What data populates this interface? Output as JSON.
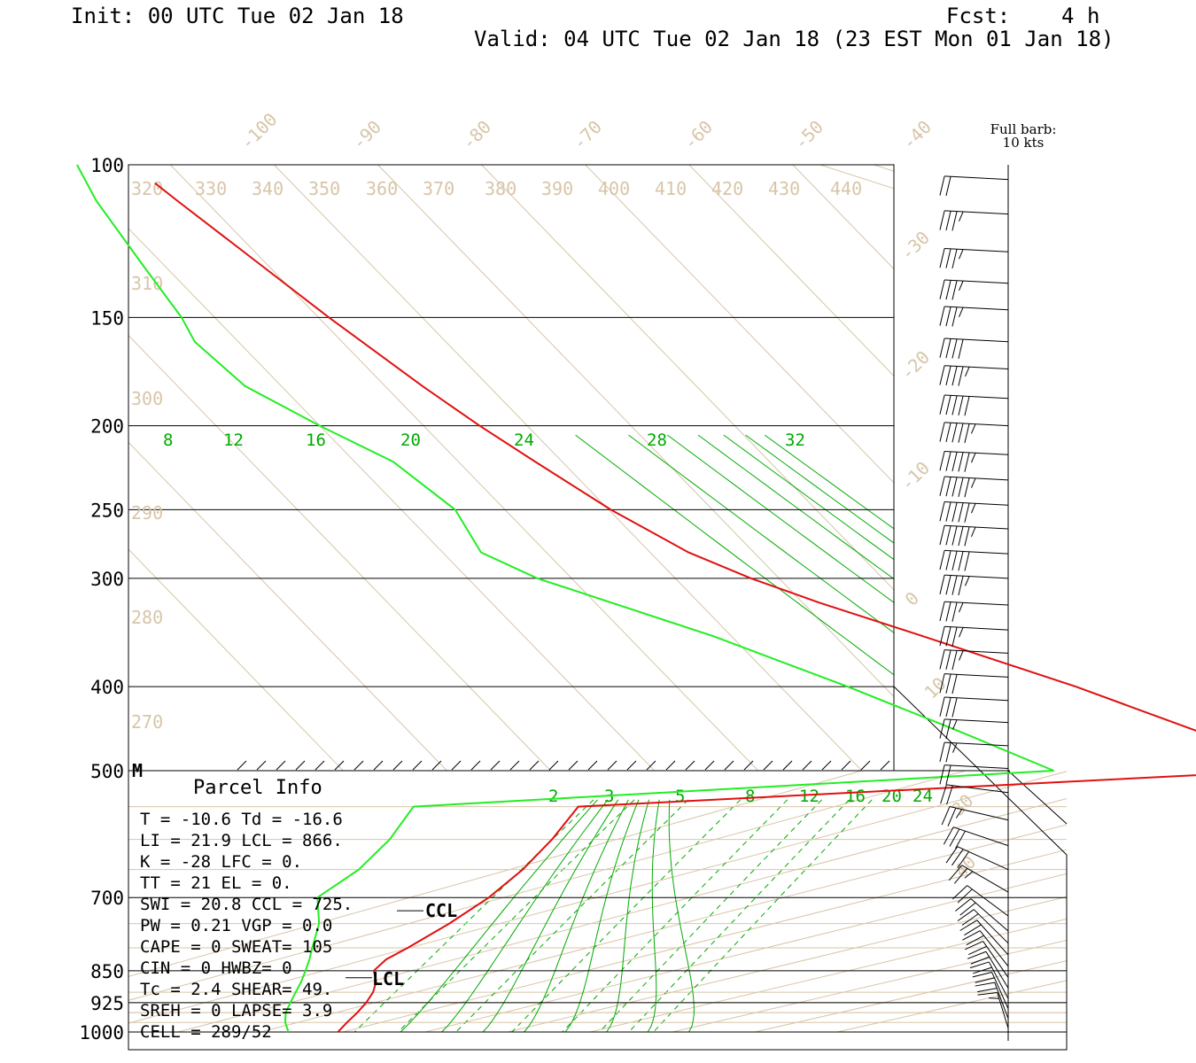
{
  "header": {
    "init": "Init: 00 UTC Tue 02 Jan 18",
    "forecast": "Fcst:    4 h",
    "valid": "Valid: 04 UTC Tue 02 Jan 18 (23 EST Mon 01 Jan 18)"
  },
  "barb_key": {
    "line1": "Full barb:",
    "line2": "10 kts"
  },
  "marker_m": "M",
  "parcel": {
    "title": "Parcel Info",
    "rows": [
      "T  =   -10.6 Td = -16.6",
      "LI =    21.9 LCL =  866.",
      "K  =     -28 LFC =    0.",
      "TT =      21 EL  =    0.",
      "SWI =   20.8 CCL =  725.",
      "PW =    0.21 VGP =   0.0",
      "CAPE =     0 SWEAT=  105",
      "CIN =      0 HWBZ=    0",
      "Tc =     2.4 SHEAR=  49.",
      "SREH =     0 LAPSE=  3.9",
      "CELL = 289/52"
    ]
  },
  "level_labels": {
    "ccl": "CCL",
    "lcl": "LCL"
  },
  "colors": {
    "temperature": "#e01010",
    "dewpoint": "#22ee22",
    "background_lines": "#d8c5a8",
    "mixing_ratio": "#00aa00"
  },
  "chart_data": {
    "type": "line",
    "title": "",
    "xlabel": "",
    "ylabel": "",
    "y_scale": "log pressure (hPa)",
    "pressure_ticks_upper": [
      "100",
      "150",
      "200",
      "250",
      "300",
      "400",
      "500"
    ],
    "pressure_ticks_lower": [
      "700",
      "850",
      "925",
      "1000"
    ],
    "isotherm_labels": [
      "-100",
      "-90",
      "-80",
      "-70",
      "-60",
      "-50",
      "-40",
      "-30",
      "-20",
      "-10",
      "0",
      "10",
      "30",
      "40"
    ],
    "theta_labels": [
      "320",
      "330",
      "340",
      "350",
      "360",
      "370",
      "380",
      "390",
      "400",
      "410",
      "420",
      "430",
      "440",
      "310",
      "300",
      "290",
      "280",
      "270"
    ],
    "mixing_ratio_labels_upper": [
      "8",
      "12",
      "16",
      "20",
      "24",
      "28",
      "32"
    ],
    "mixing_ratio_labels_lower": [
      "2",
      "3",
      "5",
      "8",
      "12",
      "16",
      "20",
      "24"
    ],
    "series": [
      {
        "profile": "temperature",
        "pressure": [
          1000,
          975,
          950,
          925,
          900,
          875,
          850,
          825,
          800,
          750,
          700,
          650,
          600,
          550,
          500,
          450,
          400,
          350,
          320,
          300,
          280,
          250,
          220,
          200,
          180,
          150,
          130,
          110,
          105
        ],
        "temperature": [
          -10.6,
          -11.0,
          -11.3,
          -11.8,
          -12.6,
          -13.9,
          -15.9,
          -16.2,
          -15.4,
          -14.2,
          -13.5,
          -13.8,
          -15.0,
          -17.0,
          -19.3,
          -24.0,
          -31.5,
          -41.5,
          -48.4,
          -52.7,
          -56.3,
          -59.8,
          -62.6,
          -64.6,
          -66.4,
          -69.0,
          -70.7,
          -72.7,
          -73.2
        ]
      },
      {
        "profile": "dewpoint",
        "pressure": [
          1000,
          975,
          950,
          925,
          900,
          875,
          850,
          825,
          800,
          750,
          700,
          650,
          600,
          550,
          500,
          450,
          400,
          350,
          300,
          280,
          250,
          220,
          200,
          180,
          160,
          150,
          130,
          110,
          100
        ],
        "temperature": [
          -16.6,
          -18.5,
          -20.0,
          -21.0,
          -22.0,
          -23.0,
          -24.2,
          -25.5,
          -27.0,
          -30.0,
          -34.3,
          -33.7,
          -34.7,
          -37.0,
          -41.5,
          -47.0,
          -53.5,
          -61.7,
          -73.3,
          -76.3,
          -74.8,
          -76.3,
          -80.0,
          -83.5,
          -84.2,
          -83.2,
          -82.0,
          -80.5,
          -79.0
        ]
      }
    ],
    "wind_barbs": [
      {
        "p": 104,
        "speed": 20
      },
      {
        "p": 114,
        "speed": 35
      },
      {
        "p": 126,
        "speed": 35
      },
      {
        "p": 137,
        "speed": 35
      },
      {
        "p": 147,
        "speed": 35
      },
      {
        "p": 160,
        "speed": 40
      },
      {
        "p": 172,
        "speed": 45
      },
      {
        "p": 186,
        "speed": 50
      },
      {
        "p": 200,
        "speed": 55
      },
      {
        "p": 216,
        "speed": 55
      },
      {
        "p": 231,
        "speed": 55
      },
      {
        "p": 247,
        "speed": 55
      },
      {
        "p": 263,
        "speed": 55
      },
      {
        "p": 281,
        "speed": 50
      },
      {
        "p": 300,
        "speed": 45
      },
      {
        "p": 322,
        "speed": 35
      },
      {
        "p": 344,
        "speed": 35
      },
      {
        "p": 366,
        "speed": 35
      },
      {
        "p": 390,
        "speed": 30
      },
      {
        "p": 415,
        "speed": 30
      },
      {
        "p": 440,
        "speed": 25
      },
      {
        "p": 468,
        "speed": 25
      },
      {
        "p": 497,
        "speed": 20
      },
      {
        "p": 530,
        "speed": 20
      },
      {
        "p": 570,
        "speed": 25
      },
      {
        "p": 610,
        "speed": 30
      },
      {
        "p": 650,
        "speed": 30
      },
      {
        "p": 690,
        "speed": 25
      },
      {
        "p": 735,
        "speed": 20
      },
      {
        "p": 765,
        "speed": 20
      },
      {
        "p": 790,
        "speed": 20
      },
      {
        "p": 815,
        "speed": 20
      },
      {
        "p": 840,
        "speed": 20
      },
      {
        "p": 865,
        "speed": 20
      },
      {
        "p": 890,
        "speed": 20
      },
      {
        "p": 915,
        "speed": 20
      },
      {
        "p": 940,
        "speed": 20
      },
      {
        "p": 965,
        "speed": 20
      },
      {
        "p": 990,
        "speed": 15
      }
    ]
  }
}
